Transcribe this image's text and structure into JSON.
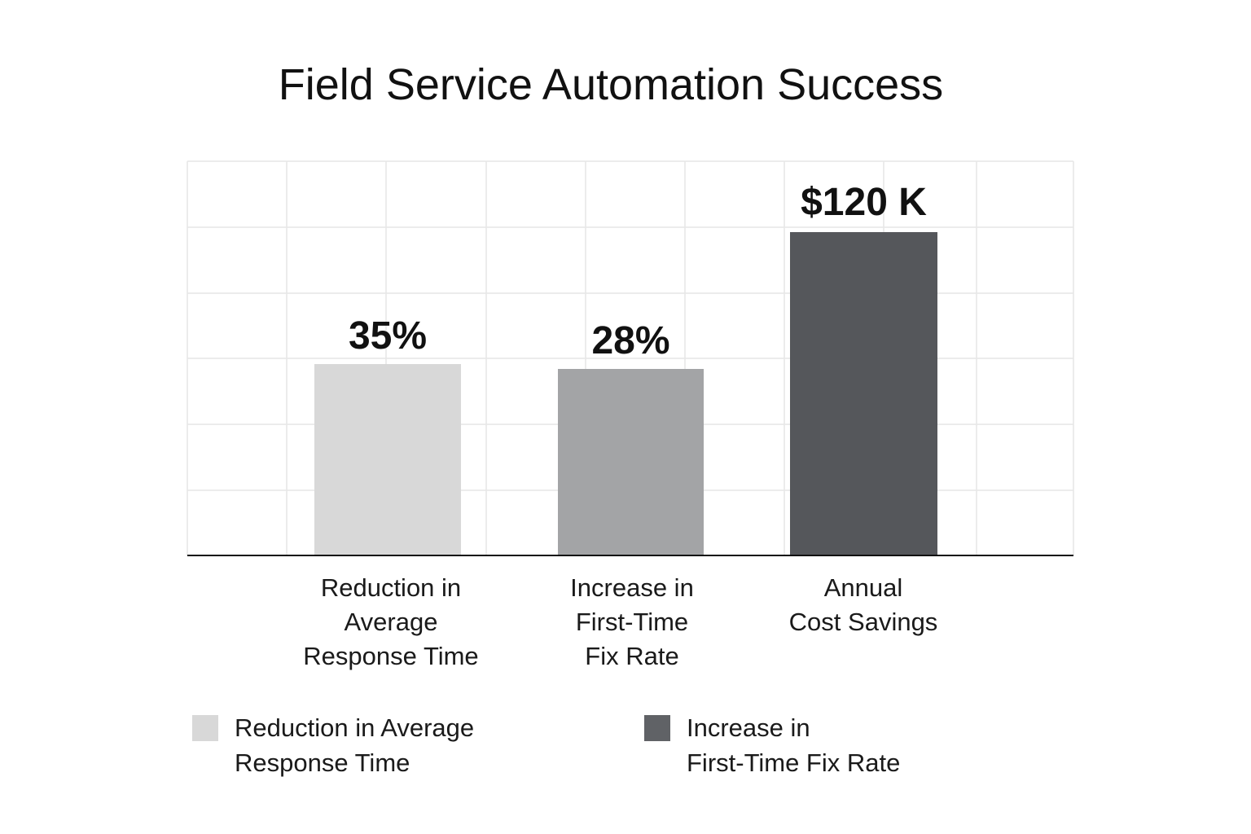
{
  "chart_data": {
    "type": "bar",
    "title": "Field Service Automation Success",
    "xlabel": "",
    "ylabel": "",
    "grid": true,
    "categories": [
      "Reduction in\nAverage\nResponse Time",
      "Increase in\nFirst-Time\nFix Rate",
      "Annual\nCost Savings"
    ],
    "values": [
      35,
      28,
      120
    ],
    "value_labels": [
      "35%",
      "28%",
      "$120 K"
    ],
    "bar_colors": [
      "#d8d8d8",
      "#a3a4a6",
      "#55575b"
    ],
    "legend_position": "bottom",
    "legend": [
      {
        "label": "Reduction in Average\nResponse Time",
        "color": "#d8d8d8"
      },
      {
        "label": "Increase in\nFirst-Time Fix Rate",
        "color": "#606266"
      }
    ]
  }
}
